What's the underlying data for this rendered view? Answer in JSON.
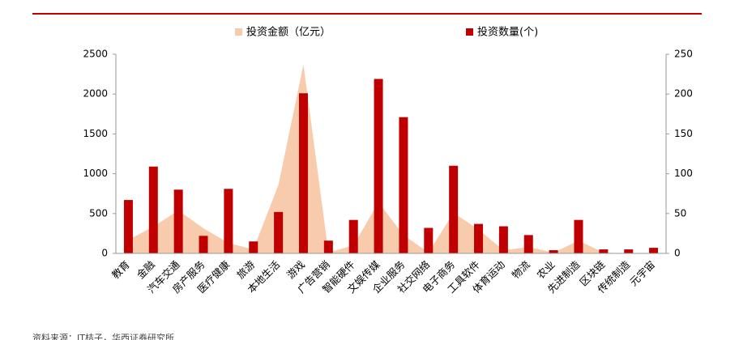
{
  "chart_data": {
    "type": "combo",
    "categories": [
      "教育",
      "金融",
      "汽车交通",
      "房产服务",
      "医疗健康",
      "旅游",
      "本地生活",
      "游戏",
      "广告营销",
      "智能硬件",
      "文娱传媒",
      "企业服务",
      "社交网络",
      "电子商务",
      "工具软件",
      "体育运动",
      "物流",
      "农业",
      "先进制造",
      "区块链",
      "传统制造",
      "元宇宙"
    ],
    "series": [
      {
        "name": "投资金额（亿元）",
        "type": "area",
        "color": "#f8cbad",
        "axis": "y",
        "values": [
          170,
          335,
          540,
          315,
          130,
          50,
          860,
          2370,
          10,
          100,
          640,
          230,
          10,
          510,
          300,
          40,
          80,
          10,
          160,
          10,
          0,
          0
        ]
      },
      {
        "name": "投资数量(个)",
        "type": "bar",
        "color": "#c00000",
        "axis": "y2",
        "values": [
          67,
          109,
          80,
          22,
          81,
          15,
          52,
          201,
          16,
          42,
          219,
          171,
          32,
          110,
          37,
          34,
          23,
          4,
          42,
          5,
          5,
          7
        ]
      }
    ],
    "ylim": [
      0,
      2500
    ],
    "yticks": [
      0,
      500,
      1000,
      1500,
      2000,
      2500
    ],
    "y2lim": [
      0,
      250
    ],
    "y2ticks": [
      0,
      50,
      100,
      150,
      200,
      250
    ],
    "source": "资料来源：IT桔子，华西证券研究所"
  }
}
